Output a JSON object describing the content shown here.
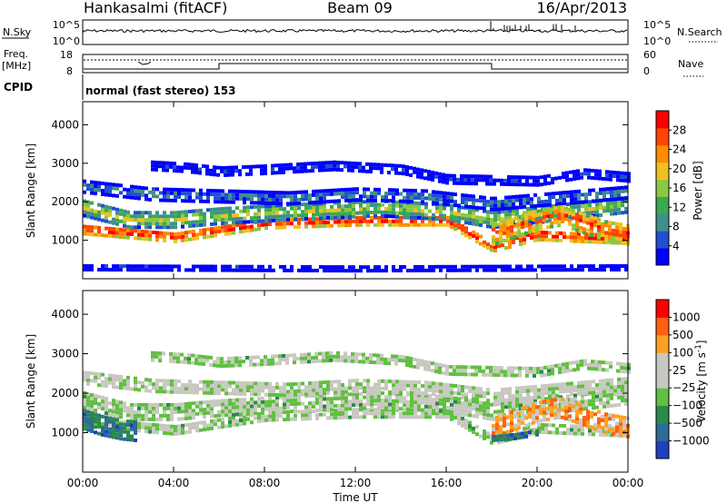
{
  "header": {
    "station": "Hankasalmi (fitACF)",
    "beam": "Beam 09",
    "date": "16/Apr/2013"
  },
  "strip": {
    "nsky_label": "N.Sky",
    "nsearch_label": "N.Search",
    "nsky_ticks": [
      "10^5",
      "10^0"
    ],
    "freq_label": "Freq.",
    "freq_unit": "[MHz]",
    "freq_ticks": [
      "18",
      "8"
    ],
    "nave_label": "Nave",
    "nave_ticks": [
      "60",
      "0"
    ],
    "cpid_label": "CPID",
    "cpid_text": "normal (fast stereo) 153"
  },
  "chart_data": [
    {
      "type": "heatmap",
      "title": "",
      "quantity": "Power",
      "xlabel": "Time UT",
      "ylabel": "Slant Range [km]",
      "x_ticks": [
        "00:00",
        "04:00",
        "08:00",
        "12:00",
        "16:00",
        "20:00",
        "00:00"
      ],
      "xlim_hours": [
        0,
        24
      ],
      "y_ticks": [
        1000,
        2000,
        3000,
        4000
      ],
      "ylim": [
        0,
        4600
      ],
      "colorbar": {
        "label": "Power [dB]",
        "ticks": [
          4,
          8,
          12,
          16,
          20,
          24,
          28
        ],
        "range": [
          0,
          32
        ],
        "colors": [
          "#0000ff",
          "#2050d0",
          "#3f8f8a",
          "#3aaa50",
          "#8cc840",
          "#f0c020",
          "#ff8c00",
          "#ff4400",
          "#ff0000"
        ]
      },
      "bands": [
        {
          "t": [
            0,
            4,
            8,
            12,
            16,
            18,
            20,
            24
          ],
          "r": [
            1250,
            1050,
            1400,
            1480,
            1480,
            800,
            1100,
            1000
          ],
          "thickness": 260,
          "level": 0.95
        },
        {
          "t": [
            0,
            2,
            4,
            6,
            9,
            13,
            16,
            18,
            21,
            24
          ],
          "r": [
            1800,
            1500,
            1500,
            1600,
            1700,
            1800,
            1700,
            1500,
            1700,
            1900
          ],
          "thickness": 420,
          "level": 0.55
        },
        {
          "t": [
            0,
            3,
            6,
            9,
            12,
            15,
            18,
            21,
            24
          ],
          "r": [
            2350,
            2150,
            2100,
            2050,
            2150,
            2100,
            1900,
            2050,
            2200
          ],
          "thickness": 300,
          "level": 0.3
        },
        {
          "t": [
            3,
            4.5,
            6,
            8,
            11,
            14,
            16,
            20,
            22,
            24
          ],
          "r": [
            2900,
            2850,
            2750,
            2800,
            2900,
            2800,
            2550,
            2500,
            2700,
            2600
          ],
          "thickness": 220,
          "level": 0.12
        },
        {
          "t": [
            18,
            19,
            20,
            21,
            22,
            23,
            24
          ],
          "r": [
            1100,
            1300,
            1500,
            1600,
            1400,
            1200,
            1100
          ],
          "thickness": 500,
          "level": 0.85
        },
        {
          "t": [
            0,
            12,
            24
          ],
          "r": [
            250,
            220,
            250
          ],
          "thickness": 120,
          "level": 0.2
        }
      ]
    },
    {
      "type": "heatmap",
      "title": "",
      "quantity": "Velocity",
      "xlabel": "Time UT",
      "ylabel": "Slant Range [km]",
      "x_ticks": [
        "00:00",
        "04:00",
        "08:00",
        "12:00",
        "16:00",
        "20:00",
        "00:00"
      ],
      "xlim_hours": [
        0,
        24
      ],
      "y_ticks": [
        1000,
        2000,
        3000,
        4000
      ],
      "ylim": [
        0,
        4600
      ],
      "colorbar": {
        "label": "Velocity [m s",
        "label_sup": "-1",
        "label_end": "]",
        "ticks": [
          "1000",
          "500",
          "100",
          "25",
          "−25",
          "−100",
          "−500",
          "−1000"
        ],
        "colors": [
          "#2040c0",
          "#2e6a9a",
          "#2a8a4a",
          "#60c040",
          "#c8c8c0",
          "#c8c8c0",
          "#ffa020",
          "#ff6010",
          "#ff0000"
        ]
      },
      "bands": [
        {
          "t": [
            0,
            4,
            8,
            12,
            16,
            18,
            20,
            24
          ],
          "r": [
            1250,
            1050,
            1400,
            1480,
            1480,
            800,
            1100,
            1000
          ],
          "thickness": 260,
          "level": 0.45
        },
        {
          "t": [
            0,
            2,
            4,
            6,
            9,
            13,
            16,
            18,
            21,
            24
          ],
          "r": [
            1800,
            1500,
            1500,
            1600,
            1700,
            1800,
            1700,
            1500,
            1700,
            1900
          ],
          "thickness": 420,
          "level": 0.45
        },
        {
          "t": [
            0,
            3,
            6,
            9,
            12,
            15,
            18,
            21,
            24
          ],
          "r": [
            2350,
            2150,
            2100,
            2050,
            2150,
            2100,
            1900,
            2050,
            2200
          ],
          "thickness": 300,
          "level": 0.5
        },
        {
          "t": [
            3,
            4.5,
            6,
            8,
            11,
            14,
            16,
            20,
            22,
            24
          ],
          "r": [
            2900,
            2850,
            2750,
            2800,
            2900,
            2800,
            2550,
            2500,
            2700,
            2600
          ],
          "thickness": 220,
          "level": 0.45
        },
        {
          "t": [
            18,
            19,
            20,
            21,
            22,
            23,
            24
          ],
          "r": [
            1100,
            1300,
            1500,
            1600,
            1400,
            1200,
            1100
          ],
          "thickness": 500,
          "level": 0.72
        },
        {
          "t": [
            0,
            0.8,
            1.6,
            2.4
          ],
          "r": [
            1300,
            1150,
            1050,
            1000
          ],
          "thickness": 500,
          "level": 0.2
        },
        {
          "t": [
            18,
            19,
            20
          ],
          "r": [
            850,
            900,
            1000
          ],
          "thickness": 180,
          "level": 0.2
        }
      ]
    }
  ],
  "colors": {
    "axis": "#000000",
    "background": "#ffffff"
  }
}
